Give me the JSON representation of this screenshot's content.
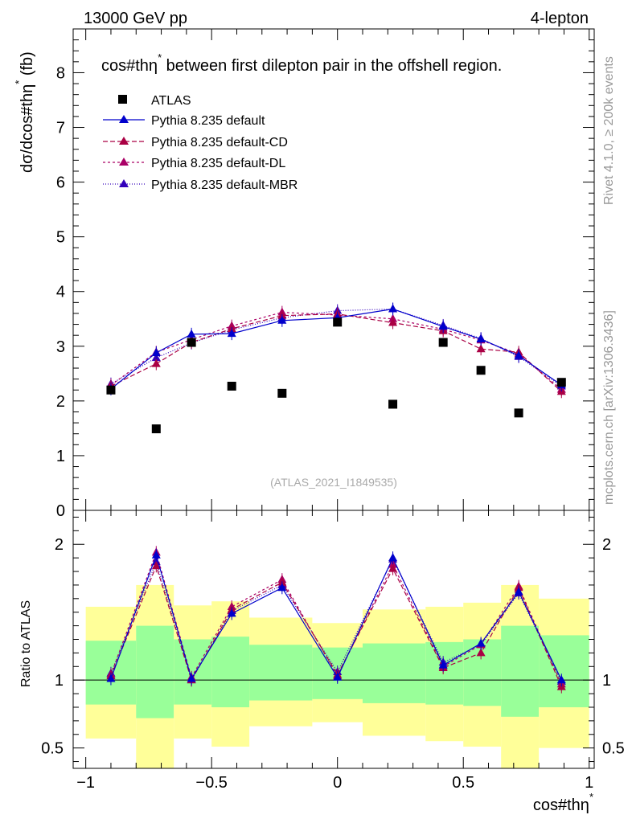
{
  "header": {
    "beam_label": "13000 GeV pp",
    "channel_label": "4-lepton"
  },
  "side_text": {
    "rivet": "Rivet 4.1.0, ≥ 200k events",
    "site": "mcplots.cern.ch [arXiv:1306.3436]"
  },
  "chart_data": [
    {
      "type": "line",
      "title": "cos#thη* between first dilepton pair in the offshell region.",
      "title_main": "cos#thη",
      "title_sup": "*",
      "title_rest": " between first dilepton pair in the offshell region.",
      "watermark": "(ATLAS_2021_I1849535)",
      "ylabel": "dσ/dcos#thη* (fb)",
      "ylabel_main": "dσ/dcos#thη",
      "ylabel_sup": "*",
      "ylabel_rest": " (fb)",
      "xlim": [
        -1.05,
        1.02
      ],
      "ylim": [
        0,
        8.8
      ],
      "y_ticks": [
        0,
        1,
        2,
        3,
        4,
        5,
        6,
        7,
        8
      ],
      "y_tick_labels": [
        "0",
        "1",
        "2",
        "3",
        "4",
        "5",
        "6",
        "7",
        "8"
      ],
      "x": [
        -0.9,
        -0.72,
        -0.58,
        -0.42,
        -0.22,
        0.0,
        0.22,
        0.42,
        0.57,
        0.72,
        0.89
      ],
      "data": {
        "name": "ATLAS",
        "values": [
          2.2,
          1.49,
          3.07,
          2.27,
          2.14,
          3.44,
          1.94,
          3.07,
          2.56,
          1.78,
          2.34
        ]
      },
      "series": [
        {
          "name": "Pythia 8.235 default",
          "color": "#0000cc",
          "dash": "",
          "values": [
            2.22,
            2.88,
            3.22,
            3.23,
            3.47,
            3.52,
            3.68,
            3.36,
            3.13,
            2.83,
            2.29
          ]
        },
        {
          "name": "Pythia 8.235 default-CD",
          "color": "#aa0044",
          "dash": "6,3",
          "values": [
            2.27,
            2.68,
            3.07,
            3.32,
            3.56,
            3.59,
            3.43,
            3.28,
            2.95,
            2.89,
            2.17
          ]
        },
        {
          "name": "Pythia 8.235 default-DL",
          "color": "#aa0066",
          "dash": "3,3",
          "values": [
            2.29,
            2.89,
            3.12,
            3.37,
            3.62,
            3.57,
            3.5,
            3.31,
            3.11,
            2.86,
            2.21
          ]
        },
        {
          "name": "Pythia 8.235 default-MBR",
          "color": "#3300bb",
          "dash": "1,2",
          "values": [
            2.31,
            2.79,
            3.06,
            3.3,
            3.52,
            3.65,
            3.68,
            3.38,
            3.14,
            2.81,
            2.27
          ]
        }
      ]
    },
    {
      "type": "line",
      "ylabel": "Ratio to ATLAS",
      "xlabel": "cos#thη*",
      "xlabel_main": "cos#thη",
      "xlabel_sup": "*",
      "xlim": [
        -1.05,
        1.02
      ],
      "ylim": [
        0.35,
        2.25
      ],
      "x_ticks": [
        -1,
        -0.5,
        0,
        0.5,
        1
      ],
      "x_tick_labels": [
        "−1",
        "−0.5",
        "0",
        "0.5",
        "1"
      ],
      "y_ticks": [
        0.5,
        1,
        2
      ],
      "y_tick_labels": [
        "0.5",
        "1",
        "2"
      ],
      "band_bins": [
        {
          "lo": -1.0,
          "hi": -0.8,
          "green": [
            0.82,
            1.29
          ],
          "yellow": [
            0.57,
            1.54
          ]
        },
        {
          "lo": -0.8,
          "hi": -0.65,
          "green": [
            0.72,
            1.4
          ],
          "yellow": [
            0.0,
            1.7
          ]
        },
        {
          "lo": -0.65,
          "hi": -0.5,
          "green": [
            0.82,
            1.3
          ],
          "yellow": [
            0.57,
            1.55
          ]
        },
        {
          "lo": -0.5,
          "hi": -0.35,
          "green": [
            0.8,
            1.32
          ],
          "yellow": [
            0.51,
            1.58
          ]
        },
        {
          "lo": -0.35,
          "hi": -0.1,
          "green": [
            0.85,
            1.26
          ],
          "yellow": [
            0.66,
            1.46
          ]
        },
        {
          "lo": -0.1,
          "hi": 0.1,
          "green": [
            0.86,
            1.24
          ],
          "yellow": [
            0.69,
            1.42
          ]
        },
        {
          "lo": 0.1,
          "hi": 0.35,
          "green": [
            0.83,
            1.27
          ],
          "yellow": [
            0.59,
            1.52
          ]
        },
        {
          "lo": 0.35,
          "hi": 0.5,
          "green": [
            0.82,
            1.28
          ],
          "yellow": [
            0.55,
            1.54
          ]
        },
        {
          "lo": 0.5,
          "hi": 0.65,
          "green": [
            0.81,
            1.3
          ],
          "yellow": [
            0.51,
            1.57
          ]
        },
        {
          "lo": 0.65,
          "hi": 0.8,
          "green": [
            0.73,
            1.4
          ],
          "yellow": [
            0.0,
            1.7
          ]
        },
        {
          "lo": 0.8,
          "hi": 1.0,
          "green": [
            0.8,
            1.33
          ],
          "yellow": [
            0.5,
            1.6
          ]
        }
      ],
      "series": [
        {
          "name": "Pythia 8.235 default",
          "values": [
            1.01,
            1.92,
            1.01,
            1.49,
            1.68,
            1.02,
            1.9,
            1.11,
            1.27,
            1.65,
            1.0
          ]
        },
        {
          "name": "Pythia 8.235 default-CD",
          "values": [
            1.03,
            1.84,
            1.0,
            1.52,
            1.72,
            1.04,
            1.82,
            1.09,
            1.2,
            1.68,
            0.95
          ]
        },
        {
          "name": "Pythia 8.235 default-DL",
          "values": [
            1.04,
            1.94,
            1.02,
            1.54,
            1.74,
            1.03,
            1.85,
            1.1,
            1.26,
            1.69,
            0.97
          ]
        },
        {
          "name": "Pythia 8.235 default-MBR",
          "values": [
            1.05,
            1.87,
            1.0,
            1.51,
            1.7,
            1.06,
            1.89,
            1.13,
            1.26,
            1.64,
            0.99
          ]
        }
      ]
    }
  ]
}
